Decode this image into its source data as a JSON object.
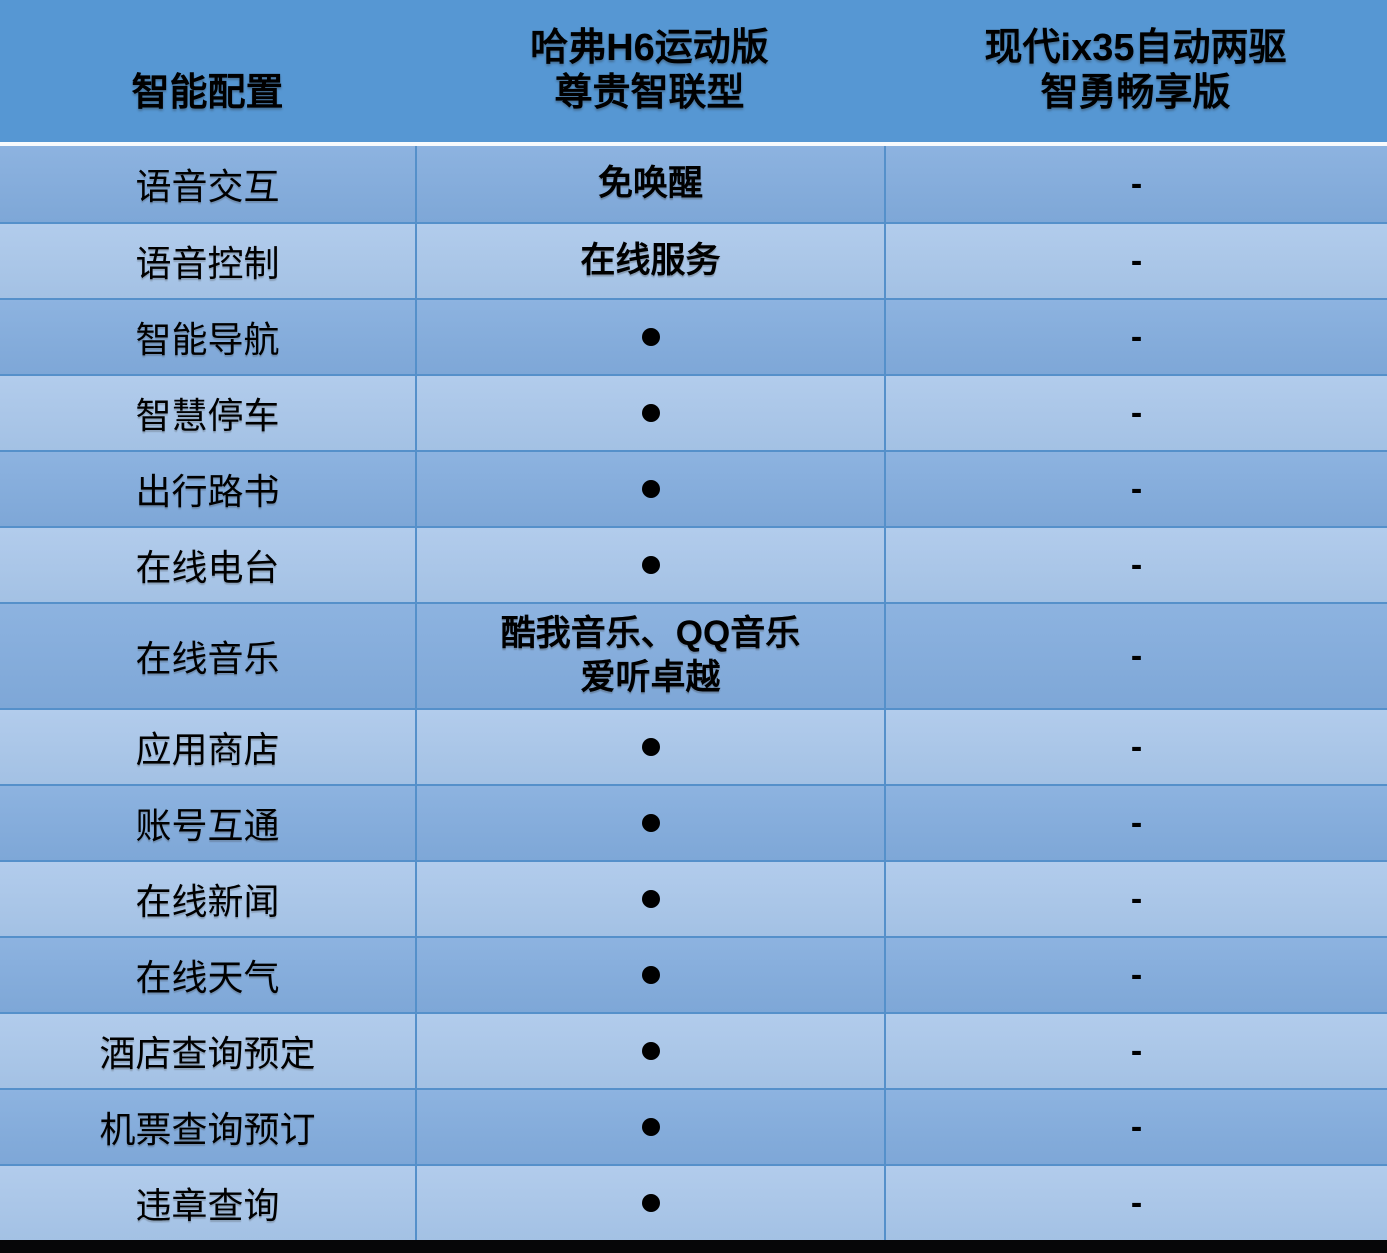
{
  "chart_data": {
    "type": "table",
    "columns": [
      "智能配置",
      "哈弗H6运动版 尊贵智联型",
      "现代ix35自动两驱 智勇畅享版"
    ],
    "rows": [
      [
        "语音交互",
        "免唤醒",
        "-"
      ],
      [
        "语音控制",
        "在线服务",
        "-"
      ],
      [
        "智能导航",
        "●",
        "-"
      ],
      [
        "智慧停车",
        "●",
        "-"
      ],
      [
        "出行路书",
        "●",
        "-"
      ],
      [
        "在线电台",
        "●",
        "-"
      ],
      [
        "在线音乐",
        "酷我音乐、QQ音乐 爱听卓越",
        "-"
      ],
      [
        "应用商店",
        "●",
        "-"
      ],
      [
        "账号互通",
        "●",
        "-"
      ],
      [
        "在线新闻",
        "●",
        "-"
      ],
      [
        "在线天气",
        "●",
        "-"
      ],
      [
        "酒店查询预定",
        "●",
        "-"
      ],
      [
        "机票查询预订",
        "●",
        "-"
      ],
      [
        "违章查询",
        "●",
        "-"
      ]
    ]
  },
  "header": {
    "col1": "智能配置",
    "col2_line1": "哈弗H6运动版",
    "col2_line2": "尊贵智联型",
    "col3_line1": "现代ix35自动两驱",
    "col3_line2": "智勇畅享版"
  },
  "table": {
    "rows": [
      {
        "label": "语音交互",
        "haval": "免唤醒",
        "hyundai": "-",
        "tall": false
      },
      {
        "label": "语音控制",
        "haval": "在线服务",
        "hyundai": "-",
        "tall": false
      },
      {
        "label": "智能导航",
        "haval": "●",
        "hyundai": "-",
        "tall": false
      },
      {
        "label": "智慧停车",
        "haval": "●",
        "hyundai": "-",
        "tall": false
      },
      {
        "label": "出行路书",
        "haval": "●",
        "hyundai": "-",
        "tall": false
      },
      {
        "label": "在线电台",
        "haval": "●",
        "hyundai": "-",
        "tall": false
      },
      {
        "label": "在线音乐",
        "haval": "酷我音乐、QQ音乐\n爱听卓越",
        "hyundai": "-",
        "tall": true
      },
      {
        "label": "应用商店",
        "haval": "●",
        "hyundai": "-",
        "tall": false
      },
      {
        "label": "账号互通",
        "haval": "●",
        "hyundai": "-",
        "tall": false
      },
      {
        "label": "在线新闻",
        "haval": "●",
        "hyundai": "-",
        "tall": false
      },
      {
        "label": "在线天气",
        "haval": "●",
        "hyundai": "-",
        "tall": false
      },
      {
        "label": "酒店查询预定",
        "haval": "●",
        "hyundai": "-",
        "tall": false
      },
      {
        "label": "机票查询预订",
        "haval": "●",
        "hyundai": "-",
        "tall": false
      },
      {
        "label": "违章查询",
        "haval": "●",
        "hyundai": "-",
        "tall": false
      }
    ]
  },
  "colors": {
    "header_bg": "#5697d3",
    "row_dark": "#85aedb",
    "row_light": "#aac6e8",
    "grid_line": "#5590ca",
    "separator_line": "#f7fafd",
    "bottom_bar": "#060608",
    "text": "#000000"
  }
}
